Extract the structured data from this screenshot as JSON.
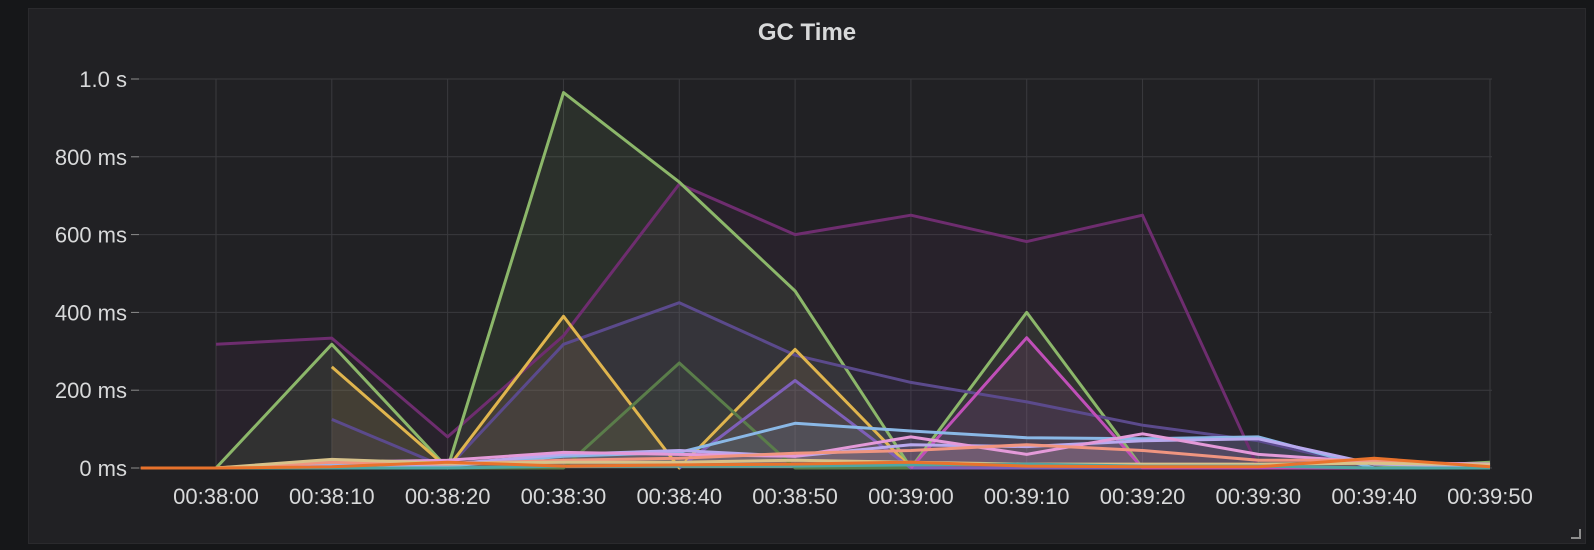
{
  "panel": {
    "title": "GC Time"
  },
  "chart_data": {
    "type": "area",
    "title": "GC Time",
    "xlabel": "",
    "ylabel": "",
    "ylim": [
      0,
      1000
    ],
    "y_unit": "ms",
    "y_ticks": [
      {
        "value": 0,
        "label": "0 ms"
      },
      {
        "value": 200,
        "label": "200 ms"
      },
      {
        "value": 400,
        "label": "400 ms"
      },
      {
        "value": 600,
        "label": "600 ms"
      },
      {
        "value": 800,
        "label": "800 ms"
      },
      {
        "value": 1000,
        "label": "1.0 s"
      }
    ],
    "x_range": [
      -6.5,
      110
    ],
    "x_ticks": [
      {
        "value": 0,
        "label": "00:38:00"
      },
      {
        "value": 10,
        "label": "00:38:10"
      },
      {
        "value": 20,
        "label": "00:38:20"
      },
      {
        "value": 30,
        "label": "00:38:30"
      },
      {
        "value": 40,
        "label": "00:38:40"
      },
      {
        "value": 50,
        "label": "00:38:50"
      },
      {
        "value": 60,
        "label": "00:39:00"
      },
      {
        "value": 70,
        "label": "00:39:10"
      },
      {
        "value": 80,
        "label": "00:39:20"
      },
      {
        "value": 90,
        "label": "00:39:30"
      },
      {
        "value": 100,
        "label": "00:39:40"
      },
      {
        "value": 110,
        "label": "00:39:50"
      }
    ],
    "grid": true,
    "legend": "none",
    "series": [
      {
        "name": "purple",
        "color": "#6e2d6f",
        "points": [
          [
            0,
            318
          ],
          [
            10,
            334
          ],
          [
            20,
            80
          ],
          [
            30,
            340
          ],
          [
            40,
            730
          ],
          [
            50,
            600
          ],
          [
            60,
            650
          ],
          [
            70,
            582
          ],
          [
            80,
            650
          ],
          [
            90,
            0
          ],
          [
            100,
            0
          ],
          [
            110,
            0
          ]
        ]
      },
      {
        "name": "green",
        "color": "#8cb76a",
        "points": [
          [
            0,
            0
          ],
          [
            10,
            318
          ],
          [
            20,
            0
          ],
          [
            30,
            965
          ],
          [
            40,
            735
          ],
          [
            50,
            455
          ],
          [
            60,
            0
          ],
          [
            70,
            400
          ],
          [
            80,
            0
          ],
          [
            90,
            0
          ],
          [
            100,
            0
          ],
          [
            110,
            15
          ]
        ]
      },
      {
        "name": "indigo",
        "color": "#5b4a8c",
        "points": [
          [
            10,
            125
          ],
          [
            20,
            0
          ],
          [
            30,
            318
          ],
          [
            40,
            425
          ],
          [
            50,
            290
          ],
          [
            60,
            220
          ],
          [
            70,
            170
          ],
          [
            80,
            110
          ],
          [
            90,
            70
          ],
          [
            100,
            0
          ],
          [
            110,
            0
          ]
        ]
      },
      {
        "name": "yellow",
        "color": "#e0b54e",
        "points": [
          [
            10,
            260
          ],
          [
            20,
            0
          ],
          [
            30,
            390
          ],
          [
            40,
            0
          ],
          [
            50,
            305
          ],
          [
            60,
            0
          ],
          [
            70,
            0
          ],
          [
            80,
            0
          ],
          [
            90,
            0
          ],
          [
            100,
            0
          ],
          [
            110,
            0
          ]
        ]
      },
      {
        "name": "darkgreen",
        "color": "#5a7d4a",
        "points": [
          [
            20,
            0
          ],
          [
            30,
            0
          ],
          [
            40,
            270
          ],
          [
            50,
            0
          ],
          [
            60,
            0
          ],
          [
            70,
            0
          ],
          [
            80,
            0
          ],
          [
            90,
            0
          ],
          [
            100,
            0
          ],
          [
            110,
            0
          ]
        ]
      },
      {
        "name": "violet",
        "color": "#7e5fb8",
        "points": [
          [
            40,
            0
          ],
          [
            50,
            225
          ],
          [
            60,
            0
          ],
          [
            70,
            0
          ],
          [
            80,
            0
          ],
          [
            90,
            0
          ],
          [
            100,
            0
          ],
          [
            110,
            0
          ]
        ]
      },
      {
        "name": "magenta",
        "color": "#c04fb8",
        "points": [
          [
            60,
            0
          ],
          [
            70,
            335
          ],
          [
            80,
            0
          ],
          [
            90,
            0
          ],
          [
            100,
            0
          ],
          [
            110,
            0
          ]
        ]
      },
      {
        "name": "lightblue",
        "color": "#8ab8e6",
        "points": [
          [
            0,
            0
          ],
          [
            10,
            10
          ],
          [
            20,
            5
          ],
          [
            30,
            30
          ],
          [
            40,
            40
          ],
          [
            50,
            115
          ],
          [
            60,
            95
          ],
          [
            70,
            78
          ],
          [
            80,
            75
          ],
          [
            90,
            80
          ],
          [
            100,
            0
          ],
          [
            110,
            0
          ]
        ]
      },
      {
        "name": "lavender",
        "color": "#b9a9ee",
        "points": [
          [
            0,
            0
          ],
          [
            10,
            5
          ],
          [
            20,
            10
          ],
          [
            30,
            35
          ],
          [
            40,
            45
          ],
          [
            50,
            30
          ],
          [
            60,
            60
          ],
          [
            70,
            55
          ],
          [
            80,
            70
          ],
          [
            90,
            75
          ],
          [
            100,
            10
          ],
          [
            110,
            5
          ]
        ]
      },
      {
        "name": "pink",
        "color": "#e49ad9",
        "points": [
          [
            0,
            0
          ],
          [
            10,
            15
          ],
          [
            20,
            20
          ],
          [
            30,
            40
          ],
          [
            40,
            35
          ],
          [
            50,
            30
          ],
          [
            60,
            80
          ],
          [
            70,
            35
          ],
          [
            80,
            88
          ],
          [
            90,
            35
          ],
          [
            100,
            15
          ],
          [
            110,
            10
          ]
        ]
      },
      {
        "name": "salmon",
        "color": "#f09580",
        "points": [
          [
            0,
            0
          ],
          [
            10,
            15
          ],
          [
            20,
            10
          ],
          [
            30,
            20
          ],
          [
            40,
            25
          ],
          [
            50,
            38
          ],
          [
            60,
            45
          ],
          [
            70,
            60
          ],
          [
            80,
            45
          ],
          [
            90,
            20
          ],
          [
            100,
            20
          ],
          [
            110,
            5
          ]
        ]
      },
      {
        "name": "tan",
        "color": "#d8c28a",
        "points": [
          [
            0,
            0
          ],
          [
            10,
            22
          ],
          [
            20,
            12
          ],
          [
            30,
            15
          ],
          [
            40,
            15
          ],
          [
            50,
            20
          ],
          [
            60,
            15
          ],
          [
            70,
            10
          ],
          [
            80,
            10
          ],
          [
            90,
            10
          ],
          [
            100,
            12
          ],
          [
            110,
            8
          ]
        ]
      },
      {
        "name": "teal",
        "color": "#4fa6a3",
        "points": [
          [
            0,
            0
          ],
          [
            10,
            0
          ],
          [
            20,
            0
          ],
          [
            30,
            5
          ],
          [
            40,
            5
          ],
          [
            50,
            5
          ],
          [
            60,
            8
          ],
          [
            70,
            10
          ],
          [
            80,
            5
          ],
          [
            90,
            5
          ],
          [
            100,
            0
          ],
          [
            110,
            0
          ]
        ]
      },
      {
        "name": "orange",
        "color": "#e8722c",
        "points": [
          [
            -6.5,
            0
          ],
          [
            0,
            0
          ],
          [
            10,
            3
          ],
          [
            20,
            15
          ],
          [
            30,
            5
          ],
          [
            40,
            8
          ],
          [
            50,
            10
          ],
          [
            60,
            15
          ],
          [
            70,
            5
          ],
          [
            80,
            3
          ],
          [
            90,
            3
          ],
          [
            100,
            25
          ],
          [
            110,
            3
          ]
        ]
      }
    ]
  }
}
